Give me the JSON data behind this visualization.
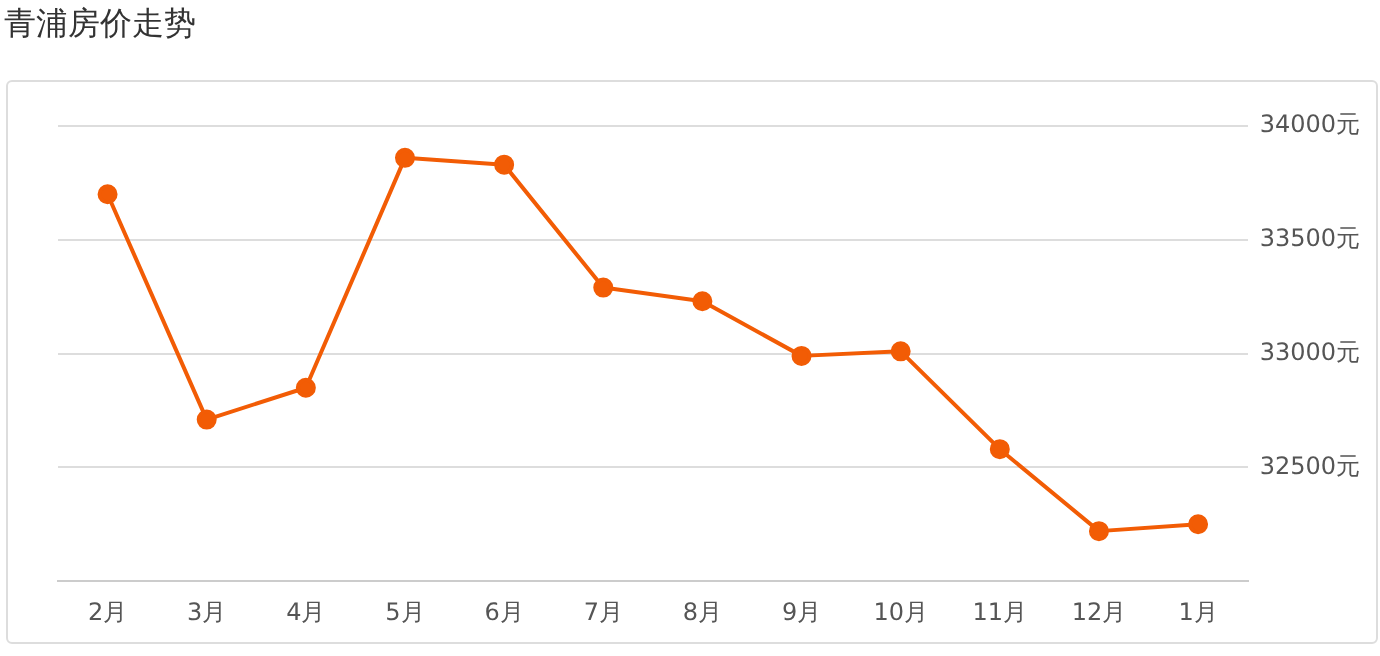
{
  "chart_data": {
    "type": "line",
    "title": "青浦房价走势",
    "categories": [
      "2月",
      "3月",
      "4月",
      "5月",
      "6月",
      "7月",
      "8月",
      "9月",
      "10月",
      "11月",
      "12月",
      "1月"
    ],
    "series": [
      {
        "color": "#f25c05",
        "values": [
          33700,
          32710,
          32850,
          33860,
          33830,
          33290,
          33230,
          32990,
          33010,
          32580,
          32220,
          32250
        ]
      }
    ],
    "ylim": [
      32000,
      34000
    ],
    "yticks": [
      {
        "value": 32000,
        "label": null
      },
      {
        "value": 32500,
        "label": "32500元"
      },
      {
        "value": 33000,
        "label": "33000元"
      },
      {
        "value": 33500,
        "label": "33500元"
      },
      {
        "value": 34000,
        "label": "34000元"
      }
    ],
    "grid": "y",
    "legend": false,
    "marker": "circle",
    "line_style": "solid"
  }
}
